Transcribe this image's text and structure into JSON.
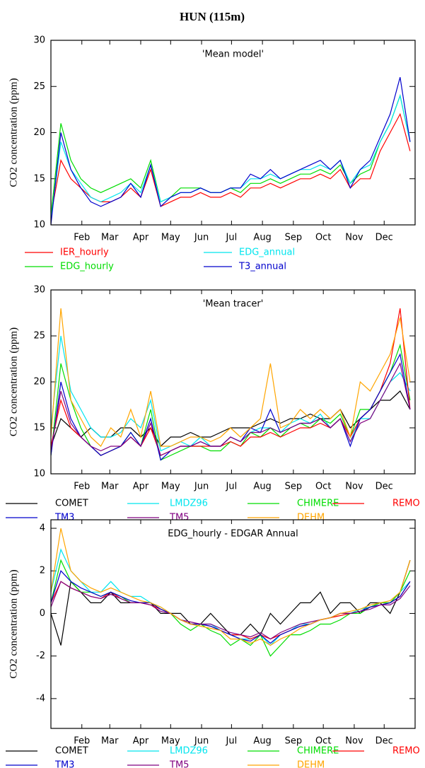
{
  "title": "HUN (115m)",
  "chart_data": [
    {
      "type": "line",
      "annotation": "'Mean model'",
      "y_label": "CO2 concentration (ppm)",
      "x": [
        1,
        11,
        21,
        31,
        41,
        51,
        61,
        71,
        81,
        91,
        101,
        111,
        121,
        131,
        141,
        151,
        161,
        171,
        181,
        191,
        201,
        211,
        221,
        231,
        241,
        251,
        261,
        271,
        281,
        291,
        301,
        311,
        321,
        331,
        341,
        351,
        361
      ],
      "xlim": [
        1,
        366
      ],
      "xticks": [
        {
          "value": 32,
          "label": "Feb"
        },
        {
          "value": 60,
          "label": "Mar"
        },
        {
          "value": 91,
          "label": "Apr"
        },
        {
          "value": 121,
          "label": "May"
        },
        {
          "value": 152,
          "label": "Jun"
        },
        {
          "value": 182,
          "label": "Jul"
        },
        {
          "value": 213,
          "label": "Aug"
        },
        {
          "value": 244,
          "label": "Sep"
        },
        {
          "value": 274,
          "label": "Oct"
        },
        {
          "value": 305,
          "label": "Nov"
        },
        {
          "value": 335,
          "label": "Dec"
        }
      ],
      "ylim": [
        10,
        30
      ],
      "yticks": [
        10,
        15,
        20,
        25,
        30
      ],
      "series": [
        {
          "name": "IER_hourly",
          "color": "#ff0000",
          "values": [
            11,
            17,
            15,
            14,
            13,
            12.5,
            12.5,
            13,
            14,
            13,
            16,
            12,
            12.5,
            13,
            13,
            13.5,
            13,
            13,
            13.5,
            13,
            14,
            14,
            14.5,
            14,
            14.5,
            15,
            15,
            15.5,
            15,
            16,
            14,
            15,
            15,
            18,
            20,
            22,
            18
          ]
        },
        {
          "name": "EDG_hourly",
          "color": "#00dd00",
          "values": [
            11,
            21,
            17,
            15,
            14,
            13.5,
            14,
            14.5,
            15,
            14,
            17,
            12.5,
            13,
            14,
            14,
            14,
            13.5,
            13.5,
            14,
            13.5,
            14.5,
            14.5,
            15,
            14.5,
            15,
            15.5,
            15.5,
            16,
            15.5,
            16.5,
            14.5,
            15.5,
            16,
            19,
            21,
            24,
            19
          ]
        },
        {
          "name": "EDG_annual",
          "color": "#00e5ee",
          "values": [
            10.5,
            19,
            16,
            14.5,
            13,
            12.5,
            13,
            13.5,
            14.5,
            13.5,
            16.5,
            12.5,
            13,
            13.5,
            13.5,
            14,
            13.5,
            13.5,
            14,
            14,
            15,
            15,
            15.5,
            15,
            15.5,
            16,
            16,
            16.5,
            16,
            17,
            14.5,
            16,
            16.5,
            19,
            21,
            24,
            19
          ]
        },
        {
          "name": "T3_annual",
          "color": "#0000cc",
          "values": [
            10,
            20,
            16,
            14,
            12.5,
            12,
            12.5,
            13,
            14.5,
            13,
            16.5,
            12,
            13,
            13.5,
            13.5,
            14,
            13.5,
            13.5,
            14,
            14,
            15.5,
            15,
            16,
            15,
            15.5,
            16,
            16.5,
            17,
            16,
            17,
            14,
            16,
            17,
            19.5,
            22,
            26,
            19
          ]
        }
      ]
    },
    {
      "type": "line",
      "annotation": "'Mean tracer'",
      "y_label": "CO2 concentration (ppm)",
      "x": [
        1,
        11,
        21,
        31,
        41,
        51,
        61,
        71,
        81,
        91,
        101,
        111,
        121,
        131,
        141,
        151,
        161,
        171,
        181,
        191,
        201,
        211,
        221,
        231,
        241,
        251,
        261,
        271,
        281,
        291,
        301,
        311,
        321,
        331,
        341,
        351,
        361
      ],
      "xlim": [
        1,
        366
      ],
      "xticks": [
        {
          "value": 32,
          "label": "Feb"
        },
        {
          "value": 60,
          "label": "Mar"
        },
        {
          "value": 91,
          "label": "Apr"
        },
        {
          "value": 121,
          "label": "May"
        },
        {
          "value": 152,
          "label": "Jun"
        },
        {
          "value": 182,
          "label": "Jul"
        },
        {
          "value": 213,
          "label": "Aug"
        },
        {
          "value": 244,
          "label": "Sep"
        },
        {
          "value": 274,
          "label": "Oct"
        },
        {
          "value": 305,
          "label": "Nov"
        },
        {
          "value": 335,
          "label": "Dec"
        }
      ],
      "ylim": [
        10,
        30
      ],
      "yticks": [
        10,
        15,
        20,
        25,
        30
      ],
      "series": [
        {
          "name": "COMET",
          "color": "#000000",
          "values": [
            13,
            16,
            15,
            14,
            15,
            14,
            14,
            15,
            15,
            14,
            15,
            13,
            14,
            14,
            14.5,
            14,
            14,
            14.5,
            15,
            15,
            15,
            15.5,
            16,
            15.5,
            16,
            16,
            16.5,
            16,
            16,
            17,
            15,
            16,
            17,
            18,
            18,
            19,
            17
          ]
        },
        {
          "name": "LMDZ96",
          "color": "#00e5ee",
          "values": [
            15,
            25,
            19,
            17,
            15,
            14,
            14,
            14.5,
            16,
            15,
            18,
            12.5,
            13,
            13.5,
            13,
            14,
            13,
            13,
            14,
            13.5,
            14.5,
            15,
            15,
            14.5,
            15.5,
            16,
            15.5,
            16.5,
            15,
            16,
            13.5,
            16,
            16,
            18,
            20,
            21,
            19
          ]
        },
        {
          "name": "CHIMERE",
          "color": "#00dd00",
          "values": [
            12,
            22,
            18,
            15,
            13,
            12,
            12.5,
            13,
            14.5,
            13,
            17,
            11.5,
            12,
            12.5,
            13,
            13,
            12.5,
            12.5,
            13.5,
            13,
            14.5,
            14,
            15,
            14,
            15,
            15.5,
            15,
            16,
            15.5,
            16.5,
            14,
            17,
            17,
            19,
            21,
            24,
            18
          ]
        },
        {
          "name": "REMO",
          "color": "#ff0000",
          "values": [
            13,
            18,
            15,
            14,
            13,
            12,
            12.5,
            13,
            14,
            13,
            15,
            12,
            12.5,
            13,
            13,
            13,
            13,
            13,
            13.5,
            13,
            14,
            14,
            14.5,
            14,
            14.5,
            15,
            15,
            15.5,
            15,
            16,
            14,
            16,
            17,
            19,
            22,
            28,
            17
          ]
        },
        {
          "name": "TM3",
          "color": "#0000cc",
          "values": [
            12,
            20,
            16,
            14,
            13,
            12,
            12.5,
            13,
            14.5,
            13,
            16,
            11.5,
            12.5,
            13,
            13,
            13.5,
            13,
            13,
            14,
            13.5,
            15,
            14.5,
            17,
            14.5,
            15,
            15.5,
            15.5,
            16,
            15,
            16,
            13,
            16,
            17,
            19,
            21,
            23,
            17
          ]
        },
        {
          "name": "TM5",
          "color": "#800080",
          "values": [
            12.5,
            19,
            15.5,
            14,
            13,
            12.5,
            13,
            13,
            14,
            13,
            15.5,
            12,
            12.5,
            13,
            13,
            13.5,
            13,
            13,
            14,
            13.5,
            14.5,
            14.5,
            15,
            14.5,
            15,
            15.5,
            15.5,
            16,
            15,
            16,
            13.5,
            15.5,
            16,
            18,
            20,
            22,
            17
          ]
        },
        {
          "name": "DEHM",
          "color": "#ffa500",
          "values": [
            14,
            28,
            18,
            16,
            14,
            13,
            15,
            14,
            17,
            14,
            19,
            13,
            13,
            13.5,
            14,
            14,
            13.5,
            14,
            15,
            14,
            15,
            16,
            22,
            15,
            15.5,
            17,
            16,
            17,
            16,
            17,
            14,
            20,
            19,
            21,
            23,
            27,
            20
          ]
        }
      ]
    },
    {
      "type": "line",
      "annotation": "EDG_hourly - EDGAR Annual",
      "y_label": "CO2 concentration (ppm)",
      "x": [
        1,
        11,
        21,
        31,
        41,
        51,
        61,
        71,
        81,
        91,
        101,
        111,
        121,
        131,
        141,
        151,
        161,
        171,
        181,
        191,
        201,
        211,
        221,
        231,
        241,
        251,
        261,
        271,
        281,
        291,
        301,
        311,
        321,
        331,
        341,
        351,
        361
      ],
      "xlim": [
        1,
        366
      ],
      "xticks": [
        {
          "value": 32,
          "label": "Feb"
        },
        {
          "value": 60,
          "label": "Mar"
        },
        {
          "value": 91,
          "label": "Apr"
        },
        {
          "value": 121,
          "label": "May"
        },
        {
          "value": 152,
          "label": "Jun"
        },
        {
          "value": 182,
          "label": "Jul"
        },
        {
          "value": 213,
          "label": "Aug"
        },
        {
          "value": 244,
          "label": "Sep"
        },
        {
          "value": 274,
          "label": "Oct"
        },
        {
          "value": 305,
          "label": "Nov"
        },
        {
          "value": 335,
          "label": "Dec"
        }
      ],
      "ylim": [
        -5.4,
        4.4
      ],
      "yticks": [
        -4,
        -2,
        0,
        2,
        4
      ],
      "series": [
        {
          "name": "COMET",
          "color": "#000000",
          "values": [
            0,
            -1.5,
            1.5,
            1,
            0.5,
            0.5,
            1,
            0.5,
            0.5,
            0.5,
            0.5,
            0,
            0,
            0,
            -0.5,
            -0.5,
            0,
            -0.5,
            -1,
            -1,
            -0.5,
            -1,
            0,
            -0.5,
            0,
            0.5,
            0.5,
            1,
            0,
            0.5,
            0.5,
            0,
            0.5,
            0.5,
            0,
            1,
            2.5
          ]
        },
        {
          "name": "LMDZ96",
          "color": "#00e5ee",
          "values": [
            1,
            3,
            2,
            1.5,
            1,
            1,
            1.5,
            1,
            0.8,
            0.8,
            0.5,
            0.3,
            0,
            -0.3,
            -0.5,
            -0.5,
            -0.5,
            -0.8,
            -1,
            -1.2,
            -1.2,
            -1,
            -1.5,
            -1,
            -0.8,
            -0.5,
            -0.5,
            -0.3,
            -0.2,
            0,
            0,
            0.2,
            0.3,
            0.5,
            0.5,
            1,
            1.5
          ]
        },
        {
          "name": "CHIMERE",
          "color": "#00dd00",
          "values": [
            0.5,
            2.5,
            1.5,
            1,
            1,
            0.8,
            1,
            0.8,
            0.5,
            0.5,
            0.5,
            0.2,
            0,
            -0.5,
            -0.8,
            -0.5,
            -0.8,
            -1,
            -1.5,
            -1.2,
            -1.5,
            -1,
            -2,
            -1.5,
            -1,
            -1,
            -0.8,
            -0.5,
            -0.5,
            -0.3,
            0,
            0,
            0.3,
            0.5,
            0.5,
            1,
            2
          ]
        },
        {
          "name": "REMO",
          "color": "#ff0000",
          "values": [
            0.5,
            1.5,
            1.2,
            1,
            0.8,
            0.7,
            1,
            0.7,
            0.5,
            0.5,
            0.4,
            0.2,
            0,
            -0.3,
            -0.5,
            -0.5,
            -0.6,
            -0.8,
            -1,
            -1,
            -1.2,
            -1,
            -1.2,
            -1,
            -0.8,
            -0.6,
            -0.5,
            -0.3,
            -0.2,
            -0.1,
            0,
            0.1,
            0.3,
            0.4,
            0.5,
            0.8,
            1.5
          ]
        },
        {
          "name": "TM3",
          "color": "#0000cc",
          "values": [
            0.5,
            2,
            1.5,
            1.2,
            1,
            0.8,
            1,
            0.8,
            0.6,
            0.5,
            0.5,
            0.2,
            0,
            -0.3,
            -0.5,
            -0.5,
            -0.6,
            -0.8,
            -1,
            -1.2,
            -1.3,
            -1,
            -1.4,
            -1,
            -0.8,
            -0.6,
            -0.5,
            -0.3,
            -0.2,
            0,
            0,
            0.1,
            0.3,
            0.4,
            0.5,
            0.8,
            1.5
          ]
        },
        {
          "name": "TM5",
          "color": "#800080",
          "values": [
            0.3,
            1.5,
            1.2,
            1,
            0.8,
            0.7,
            0.9,
            0.7,
            0.5,
            0.5,
            0.4,
            0.1,
            0,
            -0.3,
            -0.4,
            -0.5,
            -0.5,
            -0.7,
            -0.9,
            -1,
            -1.1,
            -0.9,
            -1.2,
            -0.9,
            -0.7,
            -0.5,
            -0.4,
            -0.3,
            -0.2,
            0,
            0,
            0.1,
            0.2,
            0.4,
            0.4,
            0.7,
            1.3
          ]
        },
        {
          "name": "DEHM",
          "color": "#ffa500",
          "values": [
            1,
            4,
            2,
            1.5,
            1.2,
            1,
            1.2,
            1,
            0.8,
            0.6,
            0.5,
            0.3,
            0,
            -0.3,
            -0.5,
            -0.6,
            -0.7,
            -0.8,
            -1.2,
            -1.2,
            -1.4,
            -1.2,
            -1.5,
            -1.2,
            -1,
            -0.7,
            -0.5,
            -0.3,
            -0.2,
            0,
            0.1,
            0.2,
            0.4,
            0.5,
            0.6,
            1,
            2.5
          ]
        }
      ]
    }
  ]
}
